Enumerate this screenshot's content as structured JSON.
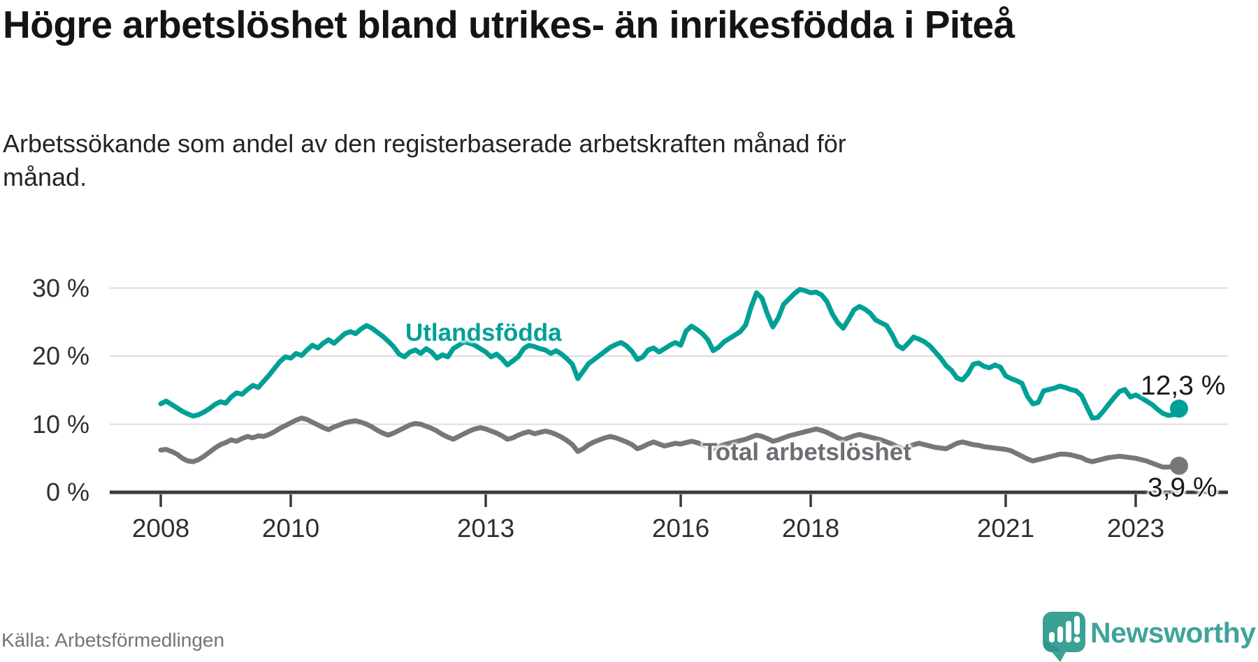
{
  "header": {
    "title": "Högre arbetslöshet bland utrikes- än inrikesfödda i Piteå",
    "subtitle_line1": "Arbetssökande som andel av den registerbaserade arbetskraften månad för",
    "subtitle_line2": "månad."
  },
  "footer": {
    "source": "Källa: Arbetsförmedlingen",
    "brand": "Newsworthy"
  },
  "colors": {
    "teal": "#00a096",
    "gray": "#76767b",
    "teal_label": "#00a096",
    "gray_label": "#6d6d73",
    "axis": "#3a3a3e",
    "grid": "#dcdcdc",
    "brand": "#3fa49a"
  },
  "chart_data": {
    "type": "line",
    "title": "Högre arbetslöshet bland utrikes- än inrikesfödda i Piteå",
    "subtitle": "Arbetssökande som andel av den registerbaserade arbetskraften månad för månad.",
    "x_unit": "year (monthly observations)",
    "x_start_year": 2008,
    "points_per_year": 12,
    "x_end": "2023-09",
    "ylim": [
      0,
      32
    ],
    "grid": "horizontal",
    "x_ticks": [
      {
        "year": 2008,
        "label": "2008"
      },
      {
        "year": 2010,
        "label": "2010"
      },
      {
        "year": 2013,
        "label": "2013"
      },
      {
        "year": 2016,
        "label": "2016"
      },
      {
        "year": 2018,
        "label": "2018"
      },
      {
        "year": 2021,
        "label": "2021"
      },
      {
        "year": 2023,
        "label": "2023"
      }
    ],
    "y_ticks": [
      {
        "value": 0,
        "label": "0 %"
      },
      {
        "value": 10,
        "label": "10 %"
      },
      {
        "value": 20,
        "label": "20 %"
      },
      {
        "value": 30,
        "label": "30 %"
      }
    ],
    "series": [
      {
        "name": "Utlandsfödda",
        "color": "#00a096",
        "end_label": "12,3 %",
        "end_value": 12.3,
        "values": [
          13.0,
          13.4,
          12.9,
          12.4,
          11.9,
          11.5,
          11.2,
          11.4,
          11.8,
          12.3,
          12.9,
          13.3,
          13.1,
          14.0,
          14.6,
          14.4,
          15.1,
          15.7,
          15.4,
          16.3,
          17.2,
          18.2,
          19.2,
          19.9,
          19.7,
          20.4,
          20.1,
          20.9,
          21.6,
          21.2,
          21.9,
          22.4,
          21.9,
          22.6,
          23.3,
          23.6,
          23.3,
          24.0,
          24.5,
          24.1,
          23.5,
          22.9,
          22.2,
          21.4,
          20.3,
          19.9,
          20.6,
          20.9,
          20.4,
          21.1,
          20.6,
          19.7,
          20.2,
          19.9,
          21.1,
          21.6,
          22.1,
          21.9,
          21.6,
          21.1,
          20.6,
          19.9,
          20.3,
          19.6,
          18.7,
          19.3,
          19.9,
          21.1,
          21.6,
          21.4,
          21.1,
          20.9,
          20.4,
          20.8,
          20.3,
          19.6,
          18.8,
          16.7,
          17.8,
          18.9,
          19.5,
          20.1,
          20.7,
          21.3,
          21.7,
          22.0,
          21.5,
          20.7,
          19.5,
          19.9,
          20.9,
          21.2,
          20.6,
          21.1,
          21.6,
          22.0,
          21.6,
          23.7,
          24.4,
          23.9,
          23.3,
          22.4,
          20.8,
          21.3,
          22.1,
          22.6,
          23.1,
          23.6,
          24.6,
          27.2,
          29.3,
          28.5,
          26.2,
          24.3,
          25.6,
          27.6,
          28.4,
          29.2,
          29.8,
          29.6,
          29.3,
          29.4,
          29.0,
          28.0,
          26.2,
          24.9,
          24.1,
          25.4,
          26.8,
          27.3,
          26.9,
          26.3,
          25.3,
          24.9,
          24.5,
          23.2,
          21.6,
          21.1,
          21.9,
          22.8,
          22.5,
          22.1,
          21.5,
          20.6,
          19.7,
          18.6,
          17.9,
          16.8,
          16.5,
          17.4,
          18.8,
          19.0,
          18.5,
          18.3,
          18.7,
          18.4,
          17.1,
          16.7,
          16.4,
          16.0,
          14.1,
          13.0,
          13.2,
          14.9,
          15.1,
          15.3,
          15.6,
          15.4,
          15.1,
          14.9,
          14.2,
          12.5,
          10.9,
          11.0,
          11.9,
          12.9,
          13.9,
          14.8,
          15.1,
          14.0,
          14.3,
          13.9,
          13.4,
          12.9,
          12.2,
          11.6,
          11.3,
          11.4,
          12.3
        ]
      },
      {
        "name": "Total arbetslöshet",
        "color": "#76767b",
        "end_label": "3,9 %",
        "end_value": 3.9,
        "values": [
          6.2,
          6.3,
          6.0,
          5.6,
          5.0,
          4.6,
          4.5,
          4.8,
          5.3,
          5.9,
          6.5,
          7.0,
          7.3,
          7.7,
          7.5,
          7.9,
          8.2,
          8.0,
          8.3,
          8.2,
          8.5,
          8.9,
          9.4,
          9.8,
          10.2,
          10.6,
          10.9,
          10.7,
          10.3,
          9.9,
          9.5,
          9.2,
          9.6,
          9.9,
          10.2,
          10.4,
          10.5,
          10.3,
          10.0,
          9.6,
          9.1,
          8.7,
          8.4,
          8.7,
          9.1,
          9.5,
          9.9,
          10.1,
          10.0,
          9.7,
          9.4,
          9.0,
          8.5,
          8.1,
          7.8,
          8.2,
          8.6,
          9.0,
          9.3,
          9.5,
          9.3,
          9.0,
          8.7,
          8.3,
          7.8,
          8.0,
          8.4,
          8.7,
          8.9,
          8.6,
          8.8,
          9.0,
          8.8,
          8.5,
          8.1,
          7.6,
          7.0,
          6.0,
          6.4,
          7.0,
          7.4,
          7.7,
          8.0,
          8.2,
          8.0,
          7.7,
          7.4,
          7.0,
          6.4,
          6.7,
          7.1,
          7.4,
          7.1,
          6.8,
          7.0,
          7.2,
          7.1,
          7.3,
          7.5,
          7.3,
          7.0,
          6.7,
          6.4,
          6.7,
          7.0,
          7.2,
          7.4,
          7.6,
          7.8,
          8.1,
          8.4,
          8.2,
          7.9,
          7.5,
          7.7,
          8.0,
          8.3,
          8.5,
          8.7,
          8.9,
          9.1,
          9.3,
          9.1,
          8.8,
          8.4,
          8.0,
          7.7,
          8.0,
          8.3,
          8.5,
          8.3,
          8.1,
          7.9,
          7.7,
          7.4,
          7.1,
          6.7,
          6.4,
          6.7,
          7.0,
          7.2,
          7.0,
          6.8,
          6.6,
          6.5,
          6.4,
          6.8,
          7.2,
          7.4,
          7.2,
          7.0,
          6.9,
          6.7,
          6.6,
          6.5,
          6.4,
          6.3,
          6.1,
          5.7,
          5.3,
          4.9,
          4.6,
          4.8,
          5.0,
          5.2,
          5.4,
          5.6,
          5.6,
          5.5,
          5.3,
          5.1,
          4.7,
          4.5,
          4.7,
          4.9,
          5.1,
          5.2,
          5.3,
          5.2,
          5.1,
          5.0,
          4.8,
          4.6,
          4.3,
          4.0,
          3.7,
          3.7,
          3.8,
          3.9
        ]
      }
    ]
  }
}
